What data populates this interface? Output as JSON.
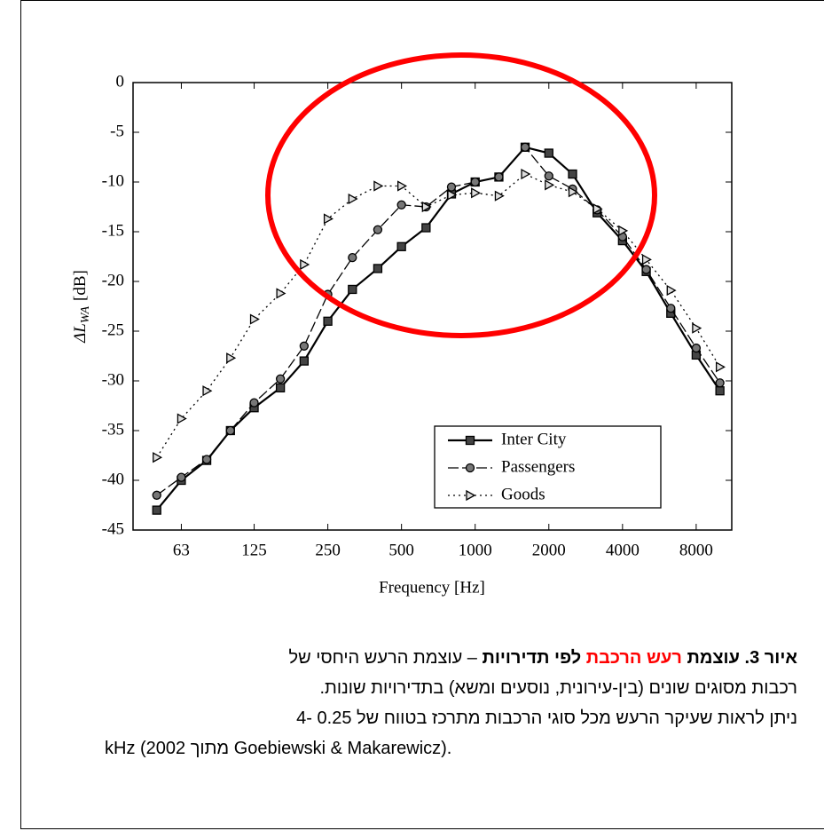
{
  "chart_data": {
    "type": "line",
    "ylabel": "ΔL",
    "ylabel_sub": "WA",
    "ylabel_unit": "[dB]",
    "xlabel": "Frequency [Hz]",
    "x": [
      50,
      63,
      80,
      100,
      125,
      160,
      200,
      250,
      315,
      400,
      500,
      630,
      800,
      1000,
      1250,
      1600,
      2000,
      2500,
      3150,
      4000,
      5000,
      6300,
      8000,
      10000
    ],
    "xscale": "log",
    "xlim": [
      40,
      11180
    ],
    "xticks": [
      63,
      125,
      250,
      500,
      1000,
      2000,
      4000,
      8000
    ],
    "ylim": [
      -45,
      0
    ],
    "yticks": [
      0,
      -5,
      -10,
      -15,
      -20,
      -25,
      -30,
      -35,
      -40,
      -45
    ],
    "legend": "lower right",
    "series": [
      {
        "name": "Inter City",
        "color": "#000000",
        "marker": "square",
        "dash": "solid",
        "values": [
          -43,
          -40,
          -38,
          -35,
          -32.7,
          -30.7,
          -28,
          -24,
          -20.8,
          -18.7,
          -16.5,
          -14.6,
          -11.2,
          -10,
          -9.5,
          -6.5,
          -7.1,
          -9.2,
          -13.1,
          -15.9,
          -19,
          -23.2,
          -27.4,
          -31
        ]
      },
      {
        "name": "Passengers",
        "color": "#000000",
        "marker": "circle",
        "dash": "dashed",
        "values": [
          -41.5,
          -39.7,
          -37.9,
          -35,
          -32.2,
          -29.8,
          -26.5,
          -21.3,
          -17.6,
          -14.8,
          -12.3,
          -12.5,
          -10.5,
          -10,
          -9.5,
          -6.5,
          -9.4,
          -10.7,
          -12.8,
          -15.5,
          -18.8,
          -22.7,
          -26.7,
          -30.2
        ]
      },
      {
        "name": "Goods",
        "color": "#000000",
        "marker": "triangle-right",
        "dash": "dotted",
        "values": [
          -37.7,
          -33.8,
          -31,
          -27.7,
          -23.8,
          -21.2,
          -18.3,
          -13.7,
          -11.7,
          -10.4,
          -10.4,
          -12.5,
          -11.3,
          -11.1,
          -11.4,
          -9.2,
          -10.3,
          -11,
          -12.7,
          -14.9,
          -17.8,
          -20.9,
          -24.7,
          -28.6
        ]
      }
    ]
  },
  "caption": {
    "bold": "איור 3. עוצמת",
    "highlight": "רעש הרכבת",
    "highlight_color": "#ff0000",
    "bold2": "לפי תדירויות",
    "rest": "– עוצמת הרעש היחסי של",
    "lines": [
      "רכבות מסוגים שונים (בין-עירונית, נוסעים ומשא) בתדירויות שונות.",
      "ניתן לראות שעיקר הרעש מכל סוגי הרכבות מתרכז בטווח של 0.25 -4",
      "kHz (מתוך 2002 Goebiewski & Makarewicz)."
    ]
  }
}
